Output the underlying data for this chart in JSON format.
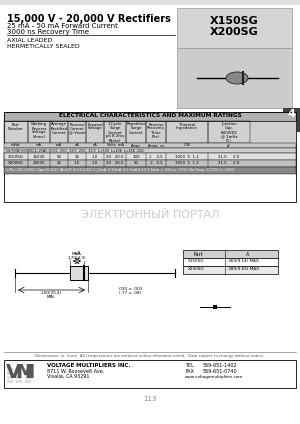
{
  "title_main": "15,000 V - 20,000 V Rectifiers",
  "title_sub1": "25 mA - 50 mA Forward Current",
  "title_sub2": "3000 ns Recovery Time",
  "part_numbers": [
    "X150SG",
    "X200SG"
  ],
  "features": [
    "AXIAL LEADED",
    "HERMETICALLY SEALED"
  ],
  "tab_number": "4",
  "table_title": "ELECTRICAL CHARACTERISTICS AND MAXIMUM RATINGS",
  "col_headers": [
    [
      "Part",
      "Number"
    ],
    [
      "Working",
      "Reverse",
      "Voltage",
      "(Vrms)"
    ],
    [
      "Average",
      "Rectified",
      "Current",
      "(Io)"
    ],
    [
      "Reverse",
      "Current",
      "@ Vnom",
      "(Ir)"
    ],
    [
      "Forward",
      "Voltage",
      "(VF)"
    ],
    [
      "1-Cycle",
      "Surge",
      "Current",
      "pk 8.3ms",
      "(Note)"
    ],
    [
      "Repetitive",
      "Surge",
      "Current"
    ],
    [
      "Reverse",
      "Recovery",
      "Time",
      "(Trr)"
    ],
    [
      "Thermal",
      "Impedance",
      "",
      "Rth"
    ],
    [
      "Junction",
      "Cap.",
      "(800VDC",
      "@ 1mHz",
      "(C)"
    ]
  ],
  "units_row": [
    "",
    "",
    "(Io)",
    "(Ir)",
    "(VF)",
    "(Amps)",
    "dBms",
    "(Trr)",
    "",
    "pF"
  ],
  "temp_row": "50/70(B) 60/80(C2) 25 AC 100/C  25/C  25/C  25/C  25/C  L=500  L=10K  L=25K  25/C",
  "row1_label": "X150SG",
  "row1_vals": [
    "15000",
    "50",
    "25",
    "1.0",
    "20",
    "20.0",
    "100",
    "1",
    "0.5",
    "3000",
    "5",
    "1.2",
    "21.5",
    "2.0"
  ],
  "row2_label": "X200SG",
  "row2_vals": [
    "20000",
    "25",
    "1.5",
    "1.0",
    "20",
    "26.0",
    "50",
    ".2",
    "0.5",
    "3000",
    "5",
    "1.2",
    "21.5",
    "2.0"
  ],
  "note_row": "1-Ph>-55C (0.0-85C) Oper.(0-85C) TA<67F (0-65-125C) 1-25mA, 1-25mA, 0.5-0mA 0.5-8.5 Tamb = -65C to +175C Sto.Temp., 0-175C to +200C",
  "dim_note": "Dimensions: In. (mm)  All temperatures are ambient unless otherwise noted.  Data subject to change without notice.",
  "company": "VOLTAGE MULTIPLIERS INC.",
  "addr1": "8711 W. Roosevelt Ave.",
  "addr2": "Visalia, CA 93291",
  "tel_label": "TEL",
  "tel": "559-651-1402",
  "fax_label": "FAX",
  "fax": "559-651-0740",
  "web": "www.voltagemultipliers.com",
  "page": "113",
  "watermark": "ЭЛЕКТРОННЫЙ ПОРТАЛ",
  "dim_row1": [
    "X150SG",
    ".360(9.14) MAX."
  ],
  "dim_row2": [
    "X200SG",
    ".380(9.65) MAX."
  ],
  "dim_a_label": ".030 ± .003",
  "dim_a_label2": "(.77 ± .08)",
  "dim_len": ".170(4.3)\nMAX.",
  "dim_min": "1.00(25.4)\nMIN."
}
